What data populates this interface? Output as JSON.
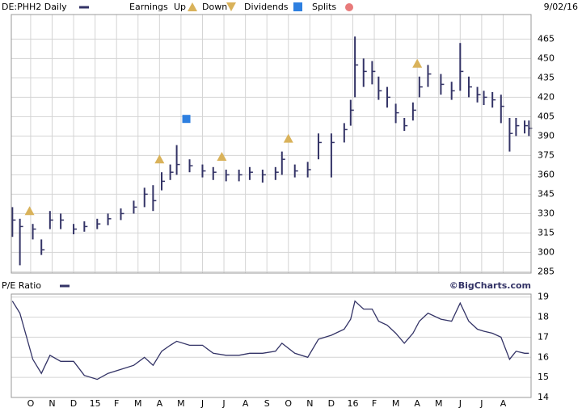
{
  "header": {
    "symbol": "DE:PHH2 Daily",
    "earnings": "Earnings",
    "up": "Up",
    "down": "Down",
    "dividends": "Dividends",
    "splits": "Splits",
    "date": "9/02/16"
  },
  "chart_data": [
    {
      "type": "ohlc",
      "color": "#333366",
      "grid": true,
      "x": [
        -0.85,
        -0.5,
        0.1,
        0.5,
        0.9,
        1.4,
        2.0,
        2.5,
        3.1,
        3.6,
        4.2,
        4.8,
        5.3,
        5.7,
        6.1,
        6.5,
        6.8,
        7.4,
        8.0,
        8.5,
        9.1,
        9.7,
        10.2,
        10.8,
        11.4,
        11.7,
        12.3,
        12.9,
        13.4,
        14.0,
        14.6,
        14.9,
        15.1,
        15.5,
        15.9,
        16.2,
        16.6,
        17.0,
        17.4,
        17.8,
        18.1,
        18.5,
        19.1,
        19.6,
        20.0,
        20.4,
        20.8,
        21.1,
        21.5,
        21.9,
        22.3,
        22.6,
        23.0,
        23.2
      ],
      "high": [
        335,
        326,
        322,
        310,
        332,
        330,
        322,
        324,
        326,
        330,
        334,
        340,
        350,
        352,
        362,
        368,
        383,
        372,
        368,
        366,
        364,
        364,
        366,
        364,
        366,
        378,
        368,
        370,
        392,
        392,
        400,
        418,
        467,
        450,
        448,
        436,
        428,
        415,
        404,
        416,
        436,
        445,
        438,
        432,
        462,
        436,
        428,
        425,
        424,
        422,
        404,
        404,
        402,
        402
      ],
      "low": [
        312,
        290,
        310,
        298,
        318,
        318,
        314,
        316,
        318,
        321,
        325,
        330,
        335,
        332,
        348,
        356,
        360,
        362,
        358,
        356,
        355,
        355,
        356,
        354,
        356,
        360,
        358,
        358,
        372,
        358,
        385,
        398,
        420,
        428,
        430,
        418,
        412,
        400,
        394,
        402,
        420,
        428,
        422,
        418,
        425,
        420,
        416,
        414,
        412,
        400,
        378,
        390,
        392,
        390
      ],
      "close": [
        325,
        320,
        318,
        302,
        325,
        325,
        318,
        320,
        322,
        326,
        330,
        335,
        345,
        340,
        355,
        362,
        368,
        367,
        363,
        362,
        360,
        360,
        362,
        360,
        362,
        372,
        363,
        364,
        385,
        385,
        395,
        410,
        445,
        440,
        440,
        425,
        420,
        408,
        398,
        410,
        428,
        438,
        430,
        425,
        440,
        428,
        422,
        420,
        418,
        413,
        392,
        398,
        398,
        396
      ],
      "earnings_x": [
        -0.05,
        6.0,
        8.9,
        12.0,
        18.0
      ],
      "dividends_x": [
        7.25
      ],
      "xlim": [
        -0.9,
        23.3
      ],
      "xticks": [
        {
          "value": 0,
          "label": "O"
        },
        {
          "value": 1,
          "label": "N"
        },
        {
          "value": 2,
          "label": "D"
        },
        {
          "value": 3,
          "label": "15"
        },
        {
          "value": 4,
          "label": "F"
        },
        {
          "value": 5,
          "label": "M"
        },
        {
          "value": 6,
          "label": "A"
        },
        {
          "value": 7,
          "label": "M"
        },
        {
          "value": 8,
          "label": "J"
        },
        {
          "value": 9,
          "label": "J"
        },
        {
          "value": 10,
          "label": "A"
        },
        {
          "value": 11,
          "label": "S"
        },
        {
          "value": 12,
          "label": "O"
        },
        {
          "value": 13,
          "label": "N"
        },
        {
          "value": 14,
          "label": "D"
        },
        {
          "value": 15,
          "label": "16"
        },
        {
          "value": 16,
          "label": "F"
        },
        {
          "value": 17,
          "label": "M"
        },
        {
          "value": 18,
          "label": "A"
        },
        {
          "value": 19,
          "label": "M"
        },
        {
          "value": 20,
          "label": "J"
        },
        {
          "value": 21,
          "label": "J"
        },
        {
          "value": 22,
          "label": "A"
        }
      ],
      "ylim": [
        284,
        484
      ],
      "yticks": [
        285,
        300,
        315,
        330,
        345,
        360,
        375,
        390,
        405,
        420,
        435,
        450,
        465
      ]
    },
    {
      "type": "line",
      "title": "P/E Ratio",
      "source": "©BigCharts.com",
      "color": "#333366",
      "grid": true,
      "x": [
        -0.85,
        -0.5,
        0.1,
        0.5,
        0.9,
        1.4,
        2.0,
        2.5,
        3.1,
        3.6,
        4.2,
        4.8,
        5.3,
        5.7,
        6.1,
        6.5,
        6.8,
        7.4,
        8.0,
        8.5,
        9.1,
        9.7,
        10.2,
        10.8,
        11.4,
        11.7,
        12.3,
        12.9,
        13.4,
        14.0,
        14.6,
        14.9,
        15.1,
        15.5,
        15.9,
        16.2,
        16.6,
        17.0,
        17.4,
        17.8,
        18.1,
        18.5,
        19.1,
        19.6,
        20.0,
        20.4,
        20.8,
        21.1,
        21.5,
        21.9,
        22.3,
        22.6,
        23.0,
        23.2
      ],
      "values": [
        18.8,
        18.2,
        15.9,
        15.2,
        16.1,
        15.8,
        15.8,
        15.1,
        14.9,
        15.2,
        15.4,
        15.6,
        16.0,
        15.6,
        16.3,
        16.6,
        16.8,
        16.6,
        16.6,
        16.2,
        16.1,
        16.1,
        16.2,
        16.2,
        16.3,
        16.7,
        16.2,
        16.0,
        16.9,
        17.1,
        17.4,
        17.9,
        18.8,
        18.4,
        18.4,
        17.8,
        17.6,
        17.2,
        16.7,
        17.2,
        17.8,
        18.2,
        17.9,
        17.8,
        18.7,
        17.8,
        17.4,
        17.3,
        17.2,
        17.0,
        15.9,
        16.3,
        16.2,
        16.2
      ],
      "xlim": [
        -0.9,
        23.3
      ],
      "ylim": [
        14,
        19.15
      ],
      "yticks": [
        14,
        15,
        16,
        17,
        18,
        19
      ]
    }
  ]
}
